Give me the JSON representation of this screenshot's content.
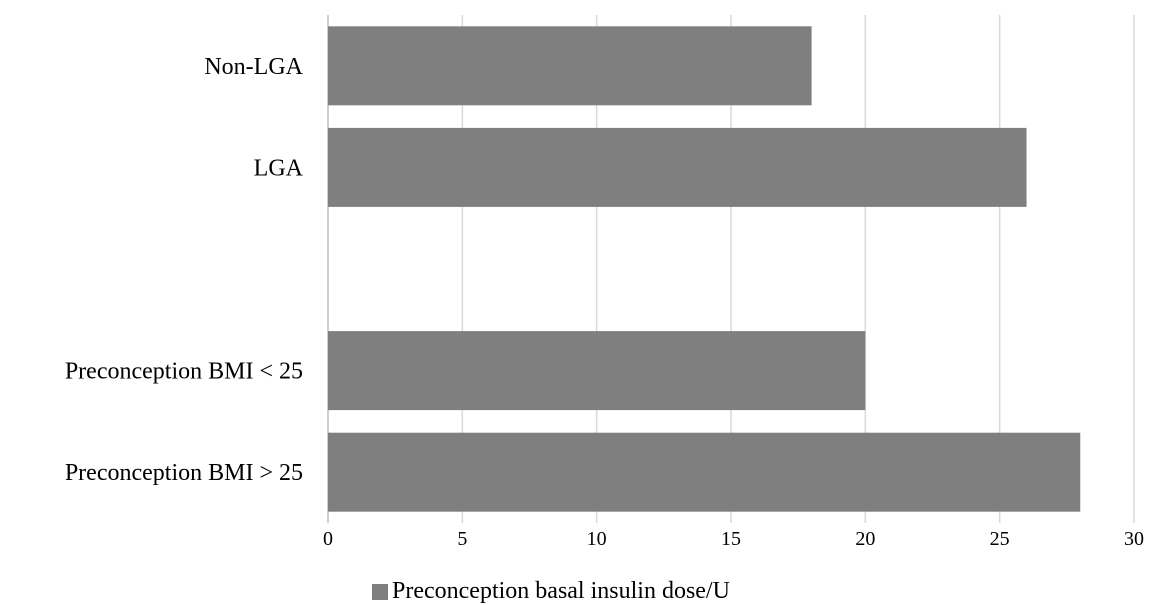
{
  "chart_data": {
    "type": "bar",
    "orientation": "horizontal",
    "categories": [
      "Non-LGA",
      "LGA",
      "",
      "Preconception BMI < 25",
      "Preconception BMI > 25"
    ],
    "series": [
      {
        "name": "Preconception basal insulin dose/U",
        "values": [
          18,
          26,
          null,
          20,
          28
        ],
        "color": "#7f7f7f"
      }
    ],
    "xlim": [
      0,
      30
    ],
    "xticks": [
      "0",
      "5",
      "10",
      "15",
      "20",
      "25",
      "30"
    ],
    "grid": true,
    "legend": "bottom",
    "title": "",
    "xlabel": "",
    "ylabel": ""
  }
}
